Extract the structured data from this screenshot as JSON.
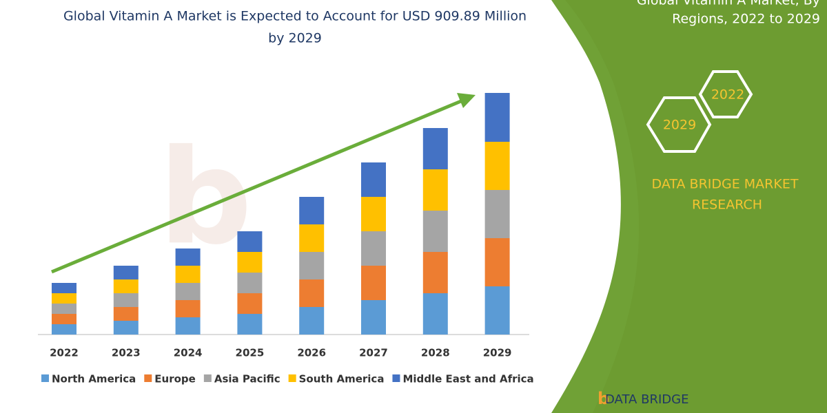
{
  "chart_data": {
    "type": "stacked-bar",
    "title": [
      "Global Vitamin A Market is Expected to Account for USD 909.89 Million",
      "by 2029"
    ],
    "categories": [
      "2022",
      "2023",
      "2024",
      "2025",
      "2026",
      "2027",
      "2028",
      "2029"
    ],
    "series": [
      {
        "name": "North America",
        "color": "#5b9bd5",
        "values": [
          15,
          20,
          25,
          30,
          40,
          50,
          60,
          70
        ]
      },
      {
        "name": "Europe",
        "color": "#ed7d31",
        "values": [
          15,
          20,
          25,
          30,
          40,
          50,
          60,
          70
        ]
      },
      {
        "name": "Asia Pacific",
        "color": "#a5a5a5",
        "values": [
          15,
          20,
          25,
          30,
          40,
          50,
          60,
          70
        ]
      },
      {
        "name": "South America",
        "color": "#ffc000",
        "values": [
          15,
          20,
          25,
          30,
          40,
          50,
          60,
          70
        ]
      },
      {
        "name": "Middle East and Africa",
        "color": "#4472c4",
        "values": [
          15,
          20,
          25,
          30,
          40,
          50,
          60,
          71
        ]
      }
    ],
    "legend": "bottom"
  },
  "panel": {
    "title": [
      "Global Vitamin A Market, By",
      "Regions, 2022 to 2029"
    ],
    "badges": [
      "2022",
      "2029"
    ],
    "brand": [
      "DATA BRIDGE MARKET",
      "RESEARCH"
    ],
    "logo": "DATA BRIDGE"
  }
}
